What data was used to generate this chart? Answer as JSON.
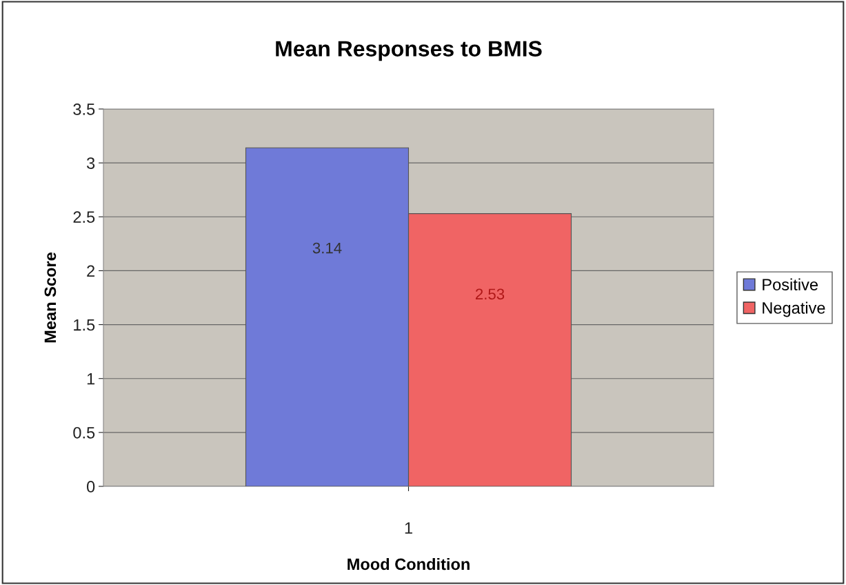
{
  "chart_data": {
    "type": "bar",
    "title": "Mean Responses to BMIS",
    "xlabel": "Mood Condition",
    "ylabel": "Mean Score",
    "categories": [
      "1"
    ],
    "series": [
      {
        "name": "Positive",
        "color": "#6f7ad8",
        "values": [
          3.14
        ]
      },
      {
        "name": "Negative",
        "color": "#f06464",
        "values": [
          2.53
        ]
      }
    ],
    "ylim": [
      0,
      3.5
    ],
    "yticks": [
      0,
      0.5,
      1,
      1.5,
      2,
      2.5,
      3,
      3.5
    ],
    "grid": "y",
    "legend": "right",
    "data_labels": true
  }
}
